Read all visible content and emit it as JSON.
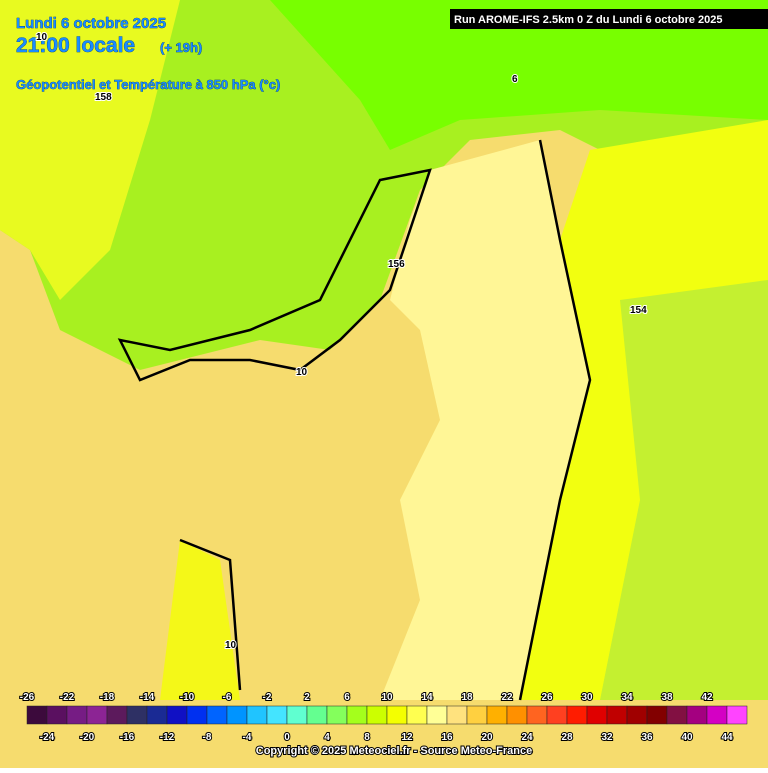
{
  "header": {
    "date": "Lundi 6 octobre 2025",
    "time": "21:00 locale",
    "offset": "(+ 19h)",
    "field": "Géopotentiel et Température à 850 hPa (°c)"
  },
  "run": "Run AROME-IFS 2.5km 0 Z du Lundi 6 octobre 2025",
  "contour_labels": [
    "10",
    "158",
    "6",
    "156",
    "154",
    "10",
    "10"
  ],
  "colorbar": {
    "ticks": [
      -26,
      -24,
      -22,
      -20,
      -18,
      -16,
      -14,
      -12,
      -10,
      -8,
      -6,
      -4,
      -2,
      0,
      2,
      4,
      6,
      8,
      10,
      12,
      14,
      16,
      18,
      20,
      22,
      24,
      26,
      28,
      30,
      32,
      34,
      36,
      38,
      40,
      42,
      44
    ],
    "colors": [
      "#3c0a3c",
      "#5a1060",
      "#761c84",
      "#8c2494",
      "#5c1a5c",
      "#2e3064",
      "#1a2a94",
      "#1010c4",
      "#0030f0",
      "#0064ff",
      "#0094ff",
      "#20c4ff",
      "#44e4ff",
      "#60ffd0",
      "#64ff90",
      "#84ff5c",
      "#a4ff1c",
      "#ccff00",
      "#f4ff00",
      "#ffff50",
      "#ffff96",
      "#ffe27e",
      "#ffd040",
      "#ffb000",
      "#ff9000",
      "#ff6420",
      "#ff4020",
      "#ff1c00",
      "#e00000",
      "#c00000",
      "#a00000",
      "#820000",
      "#821042",
      "#a40080",
      "#d400c4",
      "#ff44ff"
    ]
  },
  "copyright": "Copyright © 2025 Meteociel.fr - Source Meteo-France"
}
